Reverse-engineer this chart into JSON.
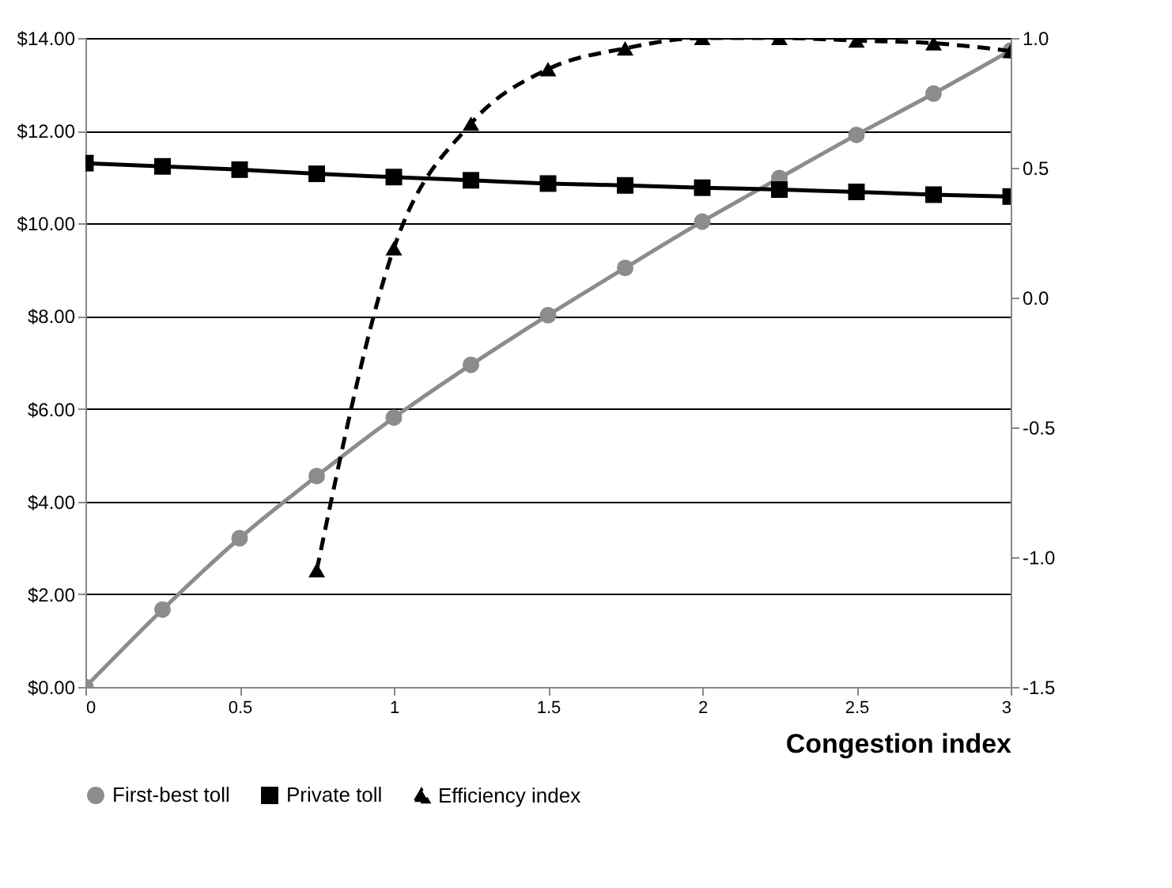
{
  "chart_data": {
    "type": "line",
    "xlabel": "Congestion index",
    "x": [
      0,
      0.25,
      0.5,
      0.75,
      1,
      1.25,
      1.5,
      1.75,
      2,
      2.25,
      2.5,
      2.75,
      3
    ],
    "series": [
      {
        "name": "First-best toll",
        "color": "#8c8c8c",
        "marker": "circle",
        "line_style": "solid",
        "values": [
          0,
          1.67,
          3.21,
          4.55,
          5.81,
          6.95,
          8.02,
          9.04,
          10.04,
          10.98,
          11.91,
          12.8,
          13.73
        ]
      },
      {
        "name": "Private toll",
        "color": "#000000",
        "marker": "square",
        "line_style": "solid",
        "values": [
          11.3,
          11.23,
          11.16,
          11.07,
          11.0,
          10.93,
          10.86,
          10.82,
          10.77,
          10.73,
          10.68,
          10.62,
          10.58
        ]
      },
      {
        "name": "Efficiency index",
        "color": "#000000",
        "marker": "triangle",
        "line_style": "dashed",
        "axis": "y2",
        "x": [
          0.75,
          1,
          1.25,
          1.5,
          1.75,
          2,
          2.25,
          2.5,
          2.75,
          3
        ],
        "values": [
          -1.05,
          0.19,
          0.67,
          0.88,
          0.96,
          1.0,
          1.0,
          0.99,
          0.98,
          0.95
        ]
      }
    ],
    "xlim": [
      0,
      3
    ],
    "xticks": [
      0,
      0.5,
      1,
      1.5,
      2,
      2.5,
      3
    ],
    "ylim": [
      0,
      14
    ],
    "yticks": [
      {
        "value": 0,
        "label": "$0.00"
      },
      {
        "value": 2,
        "label": "$2.00"
      },
      {
        "value": 4,
        "label": "$4.00"
      },
      {
        "value": 6,
        "label": "$6.00"
      },
      {
        "value": 8,
        "label": "$8.00"
      },
      {
        "value": 10,
        "label": "$10.00"
      },
      {
        "value": 12,
        "label": "$12.00"
      },
      {
        "value": 14,
        "label": "$14.00"
      }
    ],
    "y2lim": [
      -1.5,
      1.0
    ],
    "y2ticks": [
      {
        "value": -1.5,
        "label": "-1.5"
      },
      {
        "value": -1,
        "label": "-1.0"
      },
      {
        "value": -0.5,
        "label": "-0.5"
      },
      {
        "value": 0,
        "label": "0.0"
      },
      {
        "value": 0.5,
        "label": "0.5"
      },
      {
        "value": 1,
        "label": "1.0"
      }
    ],
    "grid": "y",
    "legend": "bottom"
  }
}
